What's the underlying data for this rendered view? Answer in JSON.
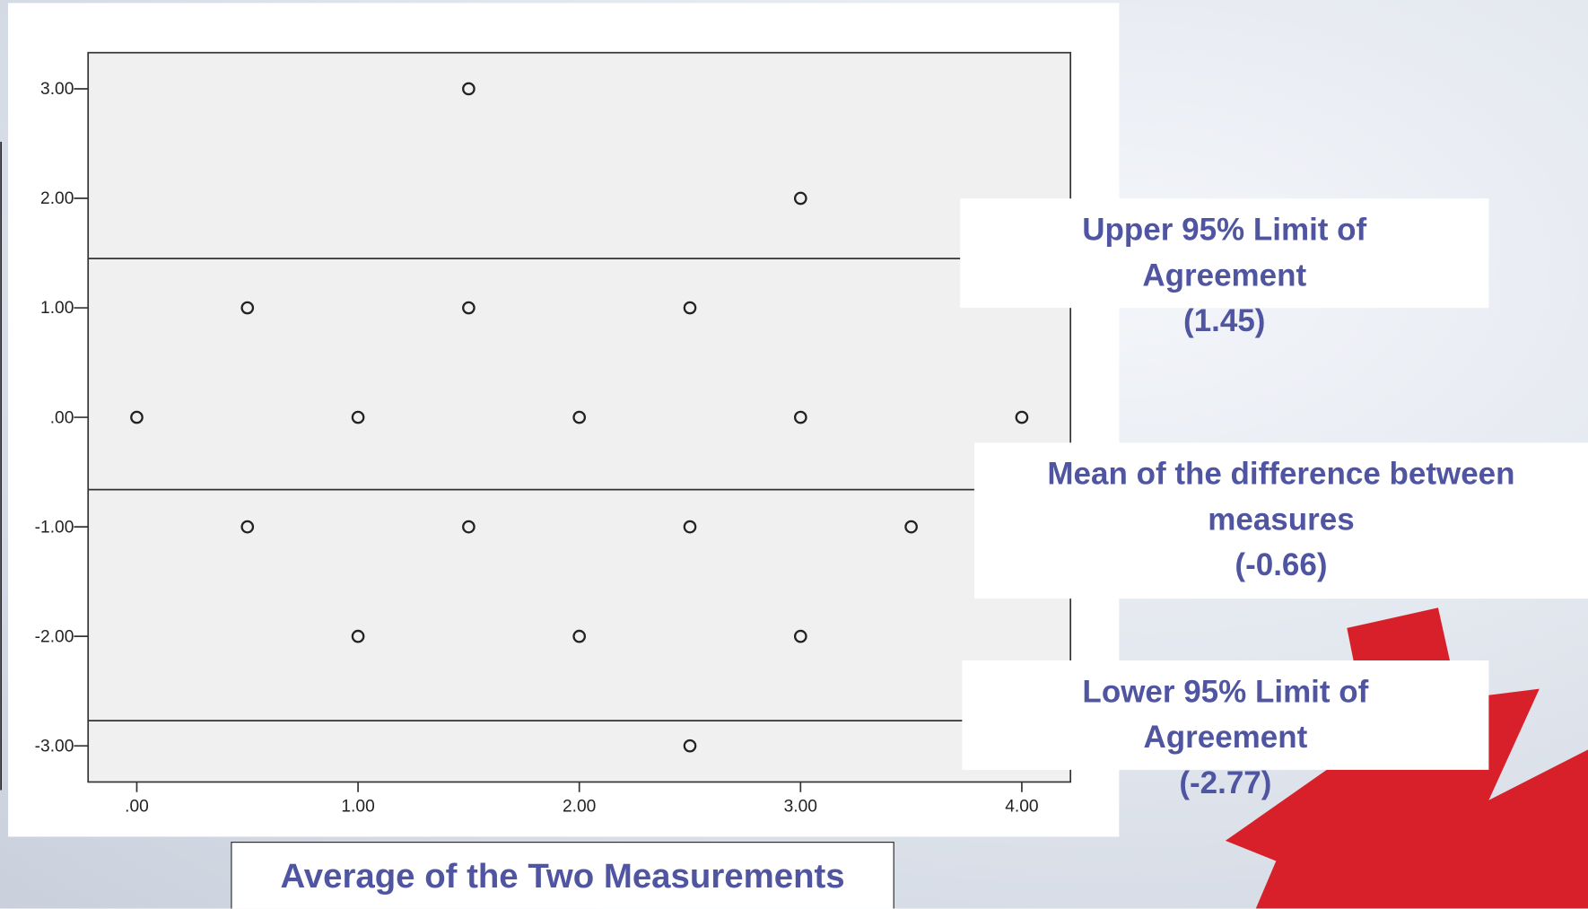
{
  "chart_data": {
    "type": "scatter",
    "x_label": "Average of the Two Measurements",
    "x": [
      0,
      0.5,
      0.5,
      1,
      1,
      1.5,
      1.5,
      1.5,
      2,
      2,
      2.5,
      2.5,
      2.5,
      3,
      3,
      3,
      3.5,
      4
    ],
    "values": [
      0,
      1,
      -1,
      0,
      -2,
      3,
      1,
      -1,
      0,
      -2,
      1,
      -1,
      -3,
      2,
      0,
      -2,
      -1,
      0
    ],
    "color": "#222222",
    "xlim": [
      -0.22,
      4.22
    ],
    "ylim": [
      -3.33,
      3.33
    ],
    "xticks": [
      {
        "value": 0,
        "label": ".00"
      },
      {
        "value": 1,
        "label": "1.00"
      },
      {
        "value": 2,
        "label": "2.00"
      },
      {
        "value": 3,
        "label": "3.00"
      },
      {
        "value": 4,
        "label": "4.00"
      }
    ],
    "yticks": [
      {
        "value": 3,
        "label": "3.00"
      },
      {
        "value": 2,
        "label": "2.00"
      },
      {
        "value": 1,
        "label": "1.00"
      },
      {
        "value": 0,
        "label": ".00"
      },
      {
        "value": -1,
        "label": "-1.00"
      },
      {
        "value": -2,
        "label": "-2.00"
      },
      {
        "value": -3,
        "label": "-3.00"
      }
    ],
    "reference_lines": [
      {
        "value": 1.45,
        "label": "Upper 95% Limit of Agreement",
        "value_label": "(1.45)"
      },
      {
        "value": -0.66,
        "label": "Mean of the difference between measures",
        "value_label": "(-0.66)"
      },
      {
        "value": -2.77,
        "label": "Lower 95% Limit of Agreement",
        "value_label": "(-2.77)"
      }
    ]
  }
}
